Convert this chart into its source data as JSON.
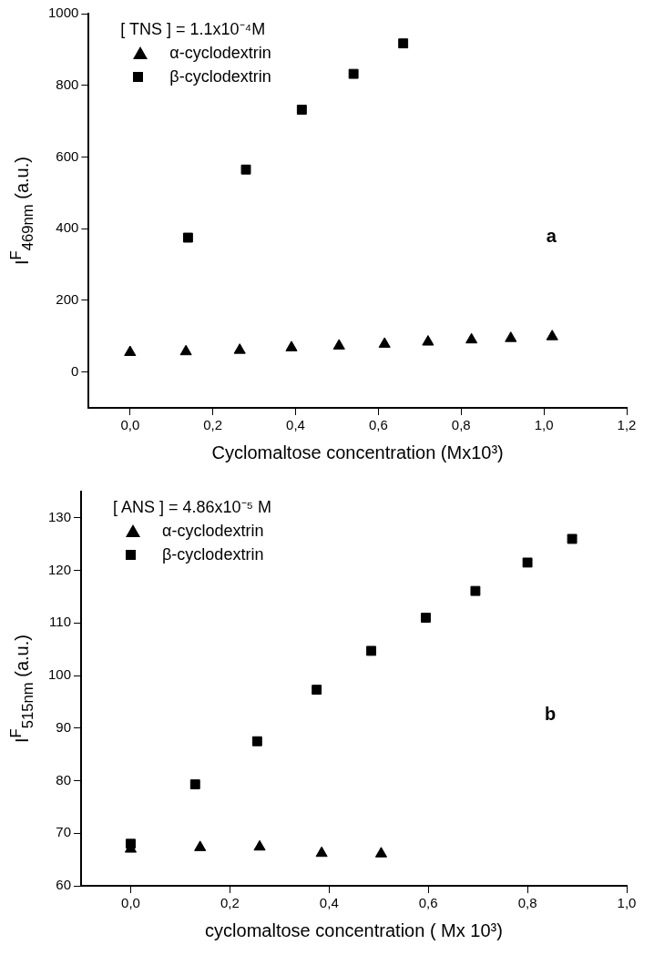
{
  "chart_data": [
    {
      "type": "scatter",
      "legend_title": "[ TNS ] = 1.1x10⁻⁴M",
      "xlabel": "Cyclomaltose concentration (Mx10³)",
      "ylabel": "I$^{F}$$_{469nm}$ (a.u.)",
      "annotations": [
        "a"
      ],
      "legend": "top left",
      "grid": false,
      "xlim": [
        -0.1,
        1.2
      ],
      "xticks": [
        {
          "value": 0,
          "label": "0,0"
        },
        {
          "value": 0.2,
          "label": "0,2"
        },
        {
          "value": 0.4,
          "label": "0,4"
        },
        {
          "value": 0.6,
          "label": "0,6"
        },
        {
          "value": 0.8,
          "label": "0,8"
        },
        {
          "value": 1,
          "label": "1,0"
        },
        {
          "value": 1.2,
          "label": "1,2"
        }
      ],
      "ylim": [
        -100,
        1000
      ],
      "yticks": [
        0,
        200,
        400,
        600,
        800,
        1000
      ],
      "series": [
        {
          "name": "α-cyclodextrin",
          "color": "#000000",
          "marker": "triangle",
          "x": [
            0,
            0.135,
            0.265,
            0.39,
            0.505,
            0.615,
            0.72,
            0.825,
            0.92,
            1.02
          ],
          "values": [
            55,
            57,
            61,
            68,
            73,
            78,
            84,
            90,
            94,
            99
          ]
        },
        {
          "name": "β-cyclodextrin",
          "color": "#000000",
          "marker": "square",
          "x": [
            0.14,
            0.28,
            0.415,
            0.54,
            0.66
          ],
          "values": [
            375,
            565,
            732,
            832,
            917
          ]
        }
      ]
    },
    {
      "type": "scatter",
      "legend_title": "[ ANS ] = 4.86x10⁻⁵ M",
      "xlabel": "cyclomaltose concentration  ( Mx 10³)",
      "ylabel": "I$^{F}$$_{515nm}$ (a.u.)",
      "annotations": [
        "b"
      ],
      "legend": "top left",
      "grid": false,
      "xlim": [
        -0.1,
        1.0
      ],
      "xticks": [
        {
          "value": 0,
          "label": "0,0"
        },
        {
          "value": 0.2,
          "label": "0,2"
        },
        {
          "value": 0.4,
          "label": "0,4"
        },
        {
          "value": 0.6,
          "label": "0,6"
        },
        {
          "value": 0.8,
          "label": "0,8"
        },
        {
          "value": 1,
          "label": "1,0"
        }
      ],
      "ylim": [
        60,
        135
      ],
      "yticks": [
        60,
        70,
        80,
        90,
        100,
        110,
        120,
        130
      ],
      "series": [
        {
          "name": "α-cyclodextrin",
          "color": "#000000",
          "marker": "triangle",
          "x": [
            0,
            0.14,
            0.26,
            0.385,
            0.505
          ],
          "values": [
            67,
            67.3,
            67.4,
            66.2,
            66.1
          ]
        },
        {
          "name": "β-cyclodextrin",
          "color": "#000000",
          "marker": "square",
          "x": [
            0,
            0.13,
            0.255,
            0.375,
            0.485,
            0.595,
            0.695,
            0.8,
            0.89
          ],
          "values": [
            68,
            79.3,
            87.5,
            97.3,
            104.7,
            111,
            116.1,
            121.5,
            126
          ]
        }
      ]
    }
  ]
}
